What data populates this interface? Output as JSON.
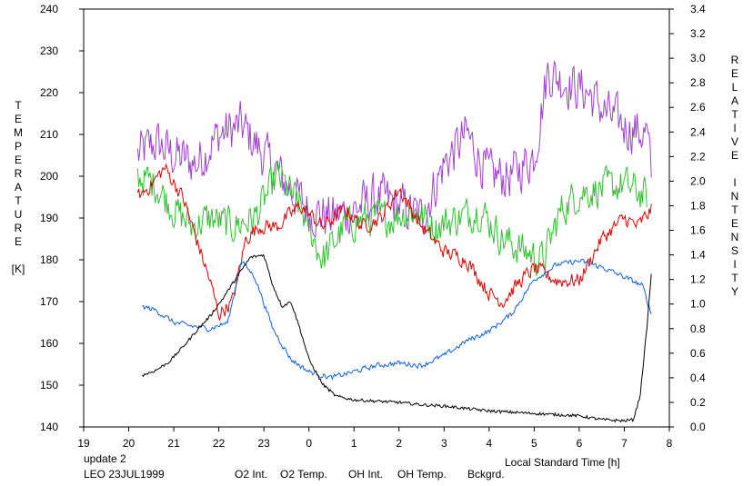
{
  "chart_data": {
    "type": "line",
    "xlabel": "Local Standard Time [h]",
    "ylabel_left_letters": [
      "T",
      "E",
      "M",
      "P",
      "E",
      "R",
      "A",
      "T",
      "U",
      "R",
      "E",
      "",
      "[K]"
    ],
    "ylabel_right_letters": [
      "R",
      "E",
      "L",
      "A",
      "T",
      "I",
      "V",
      "E",
      "",
      "I",
      "N",
      "T",
      "E",
      "N",
      "S",
      "I",
      "T",
      "Y"
    ],
    "x_axis": {
      "min": 19,
      "max": 32,
      "ticks": [
        19,
        20,
        21,
        22,
        23,
        24,
        25,
        26,
        27,
        28,
        29,
        30,
        31,
        32
      ],
      "tick_labels": [
        "19",
        "20",
        "21",
        "22",
        "23",
        "0",
        "1",
        "2",
        "3",
        "4",
        "5",
        "6",
        "7",
        "8"
      ]
    },
    "y_left": {
      "min": 140,
      "max": 240,
      "ticks": [
        140,
        150,
        160,
        170,
        180,
        190,
        200,
        210,
        220,
        230,
        240
      ],
      "tick_labels": [
        "140",
        "150",
        "160",
        "170",
        "180",
        "190",
        "200",
        "210",
        "220",
        "230",
        "240"
      ]
    },
    "y_right": {
      "min": 0,
      "max": 3.4,
      "ticks": [
        0,
        0.2,
        0.4,
        0.6,
        0.8,
        1.0,
        1.2,
        1.4,
        1.6,
        1.8,
        2.0,
        2.2,
        2.4,
        2.6,
        2.8,
        3.0,
        3.2,
        3.4
      ],
      "tick_labels": [
        "0.0",
        "0.2",
        "0.4",
        "0.6",
        "0.8",
        "1.0",
        "1.2",
        "1.4",
        "1.6",
        "1.8",
        "2.0",
        "2.2",
        "2.4",
        "2.6",
        "2.8",
        "3.0",
        "3.2",
        "3.4"
      ]
    },
    "grid": false,
    "series": [
      {
        "name": "O2 Int.",
        "axis": "right",
        "color": "#1060d8",
        "noise": 0.03,
        "x": [
          20.3,
          20.6,
          21.0,
          21.4,
          21.8,
          22.2,
          22.5,
          22.8,
          23.2,
          23.6,
          24.0,
          24.5,
          25.0,
          25.5,
          26.0,
          26.5,
          27.0,
          27.5,
          28.0,
          28.5,
          29.0,
          29.5,
          30.0,
          30.5,
          31.0,
          31.4,
          31.6
        ],
        "y": [
          0.98,
          0.95,
          0.85,
          0.82,
          0.8,
          0.85,
          1.35,
          1.22,
          0.8,
          0.55,
          0.45,
          0.4,
          0.45,
          0.5,
          0.52,
          0.5,
          0.58,
          0.7,
          0.78,
          0.92,
          1.2,
          1.32,
          1.35,
          1.3,
          1.22,
          1.15,
          0.92
        ]
      },
      {
        "name": "O2 Temp.",
        "axis": "left",
        "color": "#a040d0",
        "noise": 8,
        "x": [
          20.2,
          20.6,
          21.0,
          21.5,
          22.0,
          22.5,
          23.0,
          23.5,
          24.0,
          24.5,
          25.0,
          25.5,
          26.0,
          26.5,
          27.0,
          27.5,
          28.0,
          28.5,
          29.0,
          29.3,
          29.8,
          30.2,
          30.6,
          31.0,
          31.5,
          31.6
        ],
        "y": [
          205,
          208,
          205,
          203,
          210,
          212,
          205,
          198,
          192,
          190,
          192,
          195,
          193,
          190,
          203,
          210,
          200,
          200,
          205,
          225,
          222,
          220,
          215,
          212,
          210,
          200
        ]
      },
      {
        "name": "OH Int.",
        "axis": "left",
        "color": "#e00000",
        "noise": 2.5,
        "x": [
          20.2,
          20.5,
          20.8,
          21.2,
          21.5,
          21.8,
          22.0,
          22.3,
          22.6,
          22.9,
          23.3,
          23.8,
          24.3,
          24.8,
          25.2,
          25.6,
          26.0,
          26.5,
          27.0,
          27.5,
          28.0,
          28.3,
          28.7,
          29.0,
          29.5,
          30.0,
          30.5,
          31.0,
          31.3,
          31.6
        ],
        "y": [
          195,
          198,
          202,
          195,
          185,
          175,
          167,
          170,
          185,
          188,
          188,
          193,
          188,
          192,
          188,
          190,
          197,
          188,
          182,
          180,
          172,
          170,
          175,
          178,
          175,
          175,
          185,
          190,
          188,
          192
        ]
      },
      {
        "name": "OH Temp.",
        "axis": "left",
        "color": "#30c030",
        "noise": 6,
        "x": [
          20.2,
          20.6,
          21.0,
          21.4,
          21.8,
          22.3,
          22.8,
          23.3,
          23.8,
          24.3,
          24.8,
          25.3,
          25.8,
          26.3,
          26.8,
          27.3,
          27.8,
          28.3,
          28.8,
          29.2,
          29.6,
          30.0,
          30.5,
          31.0,
          31.5
        ],
        "y": [
          200,
          198,
          192,
          188,
          190,
          188,
          190,
          200,
          193,
          180,
          188,
          190,
          190,
          192,
          188,
          190,
          192,
          185,
          182,
          180,
          192,
          196,
          197,
          198,
          195
        ]
      },
      {
        "name": "Bckgrd.",
        "axis": "right",
        "color": "#000000",
        "noise": 0.012,
        "x": [
          20.3,
          20.6,
          20.9,
          21.2,
          21.5,
          21.8,
          22.1,
          22.4,
          22.7,
          23.0,
          23.2,
          23.4,
          23.6,
          23.8,
          24.0,
          24.3,
          24.6,
          25.0,
          25.5,
          26.0,
          26.5,
          27.0,
          27.5,
          28.0,
          28.5,
          29.0,
          29.5,
          30.0,
          30.5,
          31.0,
          31.2,
          31.35,
          31.5,
          31.6
        ],
        "y": [
          0.42,
          0.46,
          0.53,
          0.65,
          0.78,
          0.9,
          1.05,
          1.22,
          1.38,
          1.4,
          1.15,
          0.98,
          1.02,
          0.8,
          0.55,
          0.35,
          0.25,
          0.22,
          0.21,
          0.2,
          0.18,
          0.17,
          0.15,
          0.13,
          0.12,
          0.11,
          0.1,
          0.09,
          0.06,
          0.05,
          0.06,
          0.25,
          0.8,
          1.25
        ]
      }
    ],
    "legend": [
      "O2 Int.",
      "O2 Temp.",
      "OH Int.",
      "OH Temp.",
      "Bckgrd."
    ],
    "annotations": {
      "update_text": "update 2",
      "update_color": "#30c030",
      "station_text": "LEO 23JUL1999"
    }
  }
}
